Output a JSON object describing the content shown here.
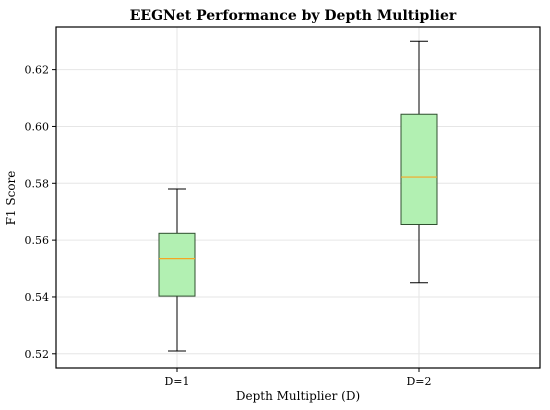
{
  "chart_data": {
    "type": "box",
    "title": "EEGNet Performance by Depth Multiplier",
    "xlabel": "Depth Multiplier (D)",
    "ylabel": "F1 Score",
    "categories": [
      "D=1",
      "D=2"
    ],
    "boxes": [
      {
        "category": "D=1",
        "whisker_low": 0.521,
        "q1": 0.5403,
        "median": 0.5535,
        "q3": 0.5624,
        "whisker_high": 0.578
      },
      {
        "category": "D=2",
        "whisker_low": 0.545,
        "q1": 0.5655,
        "median": 0.5822,
        "q3": 0.6043,
        "whisker_high": 0.63
      }
    ],
    "ylim": [
      0.515,
      0.635
    ],
    "yticks": [
      0.52,
      0.54,
      0.56,
      0.58,
      0.6,
      0.62
    ],
    "ytick_labels": [
      "0.52",
      "0.54",
      "0.56",
      "0.58",
      "0.60",
      "0.62"
    ],
    "grid": true,
    "colors": {
      "box_fill": "#b2f0b2",
      "box_edge": "#2f4f2f",
      "median": "#f5a623",
      "whisker": "#000000",
      "grid": "#e6e6e6"
    }
  }
}
